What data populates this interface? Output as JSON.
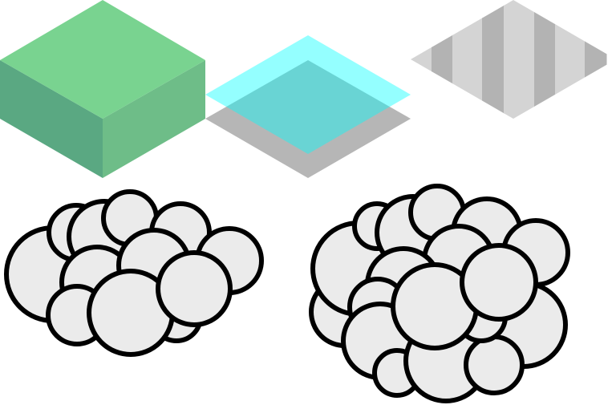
{
  "scene": {
    "background": "#ffffff",
    "tiles": [
      {
        "name": "grass-block-tile",
        "kind": "raised-block",
        "colors": {
          "top": "#79d390",
          "left": "#5aa882",
          "right": "#6ebd88"
        }
      },
      {
        "name": "water-tile",
        "kind": "translucent-water",
        "colors": {
          "shadow": "#b6b6b6",
          "water": "#00ffff",
          "water_opacity": 0.42
        }
      },
      {
        "name": "road-stripe-tile",
        "kind": "striped-flat",
        "colors": {
          "dark_stripe": "#b3b3b3",
          "light_stripe": "#d4d4d4"
        }
      }
    ],
    "clouds": [
      {
        "name": "small-cloud",
        "puff_count": 11,
        "colors": {
          "fill": "#ebebeb",
          "outline": "#000000"
        }
      },
      {
        "name": "large-cloud",
        "puff_count": 16,
        "colors": {
          "fill": "#ebebeb",
          "outline": "#000000"
        }
      }
    ]
  }
}
